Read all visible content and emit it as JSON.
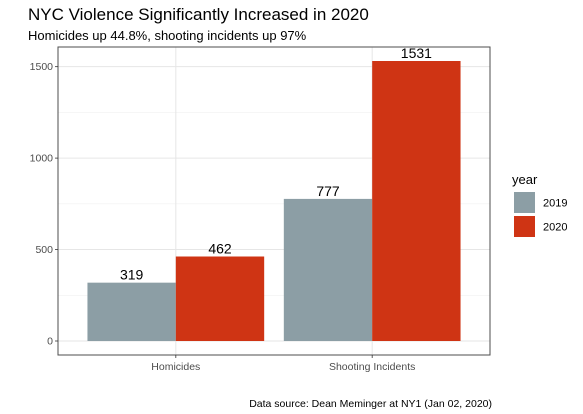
{
  "chart_data": {
    "type": "bar",
    "title": "NYC Violence Significantly Increased in 2020",
    "subtitle": "Homicides up 44.8%, shooting incidents up 97%",
    "caption": "Data source: Dean Meminger at NY1 (Jan 02, 2020)",
    "categories": [
      "Homicides",
      "Shooting Incidents"
    ],
    "series": [
      {
        "name": "2019",
        "color": "#8c9ea5",
        "values": [
          319,
          777
        ]
      },
      {
        "name": "2020",
        "color": "#cf3414",
        "values": [
          462,
          1531
        ]
      }
    ],
    "xlabel": "",
    "ylabel": "",
    "ylim": [
      -76.55,
      1607.55
    ],
    "yticks": [
      0,
      500,
      1000,
      1500
    ],
    "grid": true,
    "legend": {
      "title": "year",
      "position": "right"
    },
    "panel_background": "#ffffff",
    "panel_border": "#4d4d4d"
  }
}
